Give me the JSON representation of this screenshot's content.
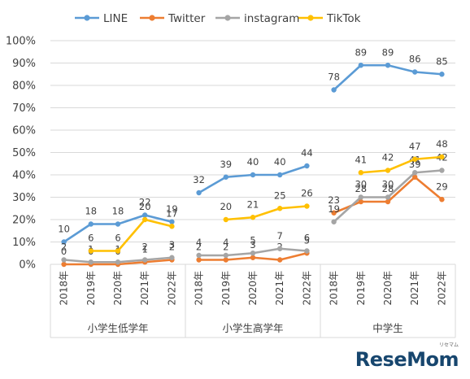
{
  "chart_data": {
    "type": "line",
    "groups": [
      {
        "name": "小学生低学年",
        "years": [
          "2018年",
          "2019年",
          "2020年",
          "2021年",
          "2022年"
        ]
      },
      {
        "name": "小学生高学年",
        "years": [
          "2018年",
          "2019年",
          "2020年",
          "2021年",
          "2022年"
        ]
      },
      {
        "name": "中学生",
        "years": [
          "2018年",
          "2019年",
          "2020年",
          "2021年",
          "2022年"
        ]
      }
    ],
    "ylim": [
      0,
      100
    ],
    "yticks": [
      "0%",
      "10%",
      "20%",
      "30%",
      "40%",
      "50%",
      "60%",
      "70%",
      "80%",
      "90%",
      "100%"
    ],
    "grid": true,
    "legend_position": "top",
    "series": [
      {
        "name": "LINE",
        "color": "#5b9bd5",
        "values": [
          [
            10,
            18,
            18,
            22,
            19
          ],
          [
            32,
            39,
            40,
            40,
            44
          ],
          [
            78,
            89,
            89,
            86,
            85
          ]
        ]
      },
      {
        "name": "Twitter",
        "color": "#ed7d31",
        "values": [
          [
            0,
            0,
            0,
            1,
            2
          ],
          [
            2,
            2,
            3,
            2,
            5
          ],
          [
            23,
            28,
            28,
            39,
            29
          ]
        ]
      },
      {
        "name": "instagram",
        "color": "#a5a5a5",
        "values": [
          [
            2,
            1,
            1,
            2,
            3
          ],
          [
            4,
            4,
            5,
            7,
            6
          ],
          [
            19,
            30,
            30,
            41,
            42
          ]
        ]
      },
      {
        "name": "TikTok",
        "color": "#ffc000",
        "values": [
          [
            null,
            6,
            6,
            20,
            17
          ],
          [
            null,
            20,
            21,
            25,
            26
          ],
          [
            null,
            41,
            42,
            47,
            48
          ]
        ]
      }
    ]
  },
  "watermark": {
    "text": "ReseMom",
    "sub": "リセマム"
  }
}
